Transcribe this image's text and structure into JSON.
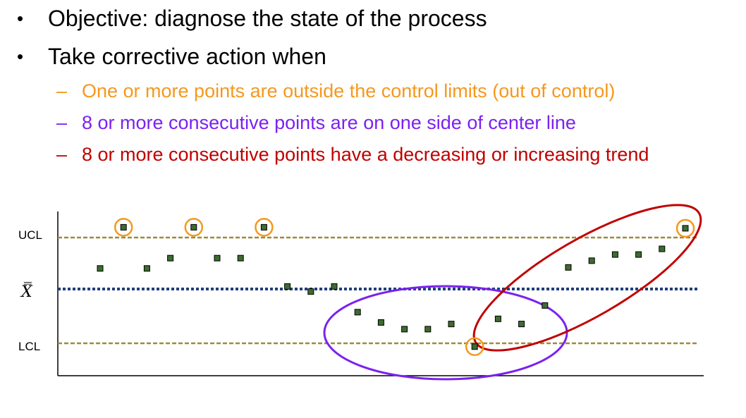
{
  "bullets": [
    {
      "text": "Objective: diagnose the state of the process"
    },
    {
      "text": "Take corrective action when"
    }
  ],
  "sub_bullets": [
    {
      "text": "One or more points are outside the control limits (out of control)",
      "color": "#F5981E"
    },
    {
      "text": "8 or more consecutive points are on one side of center line",
      "color": "#7A22F0"
    },
    {
      "text": "8 or more consecutive points have a decreasing or increasing trend",
      "color": "#C00000"
    }
  ],
  "chart": {
    "labels": {
      "ucl": "UCL",
      "center": "X̿",
      "lcl": "LCL"
    },
    "colors": {
      "limit_line": "#9E8A3A",
      "center_line": "#1F3F7A",
      "point_fill": "#3E6B2E",
      "out_of_control_circle": "#F5981E",
      "one_side_ellipse": "#7A22F0",
      "trend_ellipse": "#C00000"
    },
    "points": [
      {
        "x": 1,
        "y": 0.4
      },
      {
        "x": 2,
        "y": 1.2
      },
      {
        "x": 3,
        "y": 0.4
      },
      {
        "x": 4,
        "y": 0.6
      },
      {
        "x": 5,
        "y": 1.2
      },
      {
        "x": 6,
        "y": 0.6
      },
      {
        "x": 7,
        "y": 0.6
      },
      {
        "x": 8,
        "y": 1.2
      },
      {
        "x": 9,
        "y": 0.05
      },
      {
        "x": 10,
        "y": -0.05
      },
      {
        "x": 11,
        "y": 0.05
      },
      {
        "x": 12,
        "y": -0.45
      },
      {
        "x": 13,
        "y": -0.65
      },
      {
        "x": 14,
        "y": -0.78
      },
      {
        "x": 15,
        "y": -0.78
      },
      {
        "x": 16,
        "y": -0.68
      },
      {
        "x": 17,
        "y": -1.12
      },
      {
        "x": 18,
        "y": -0.58
      },
      {
        "x": 19,
        "y": -0.68
      },
      {
        "x": 20,
        "y": -0.32
      },
      {
        "x": 21,
        "y": 0.42
      },
      {
        "x": 22,
        "y": 0.55
      },
      {
        "x": 23,
        "y": 0.67
      },
      {
        "x": 24,
        "y": 0.67
      },
      {
        "x": 25,
        "y": 0.78
      },
      {
        "x": 26,
        "y": 1.18
      }
    ],
    "out_of_control_indices": [
      1,
      4,
      7,
      16,
      25
    ]
  }
}
